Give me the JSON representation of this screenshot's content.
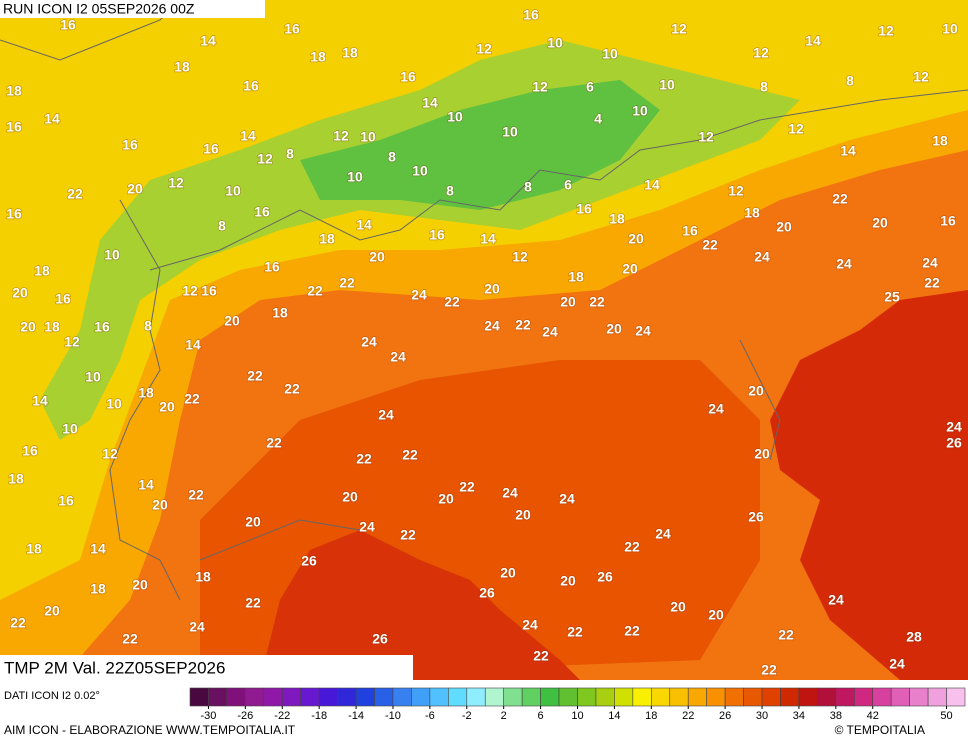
{
  "header": {
    "run": "RUN ICON I2 05SEP2026 00Z"
  },
  "map": {
    "labels": [
      16,
      14,
      16,
      18,
      18,
      16,
      18,
      18,
      16,
      14,
      16,
      16,
      14,
      12,
      8,
      12,
      10,
      8,
      10,
      10,
      8,
      16,
      14,
      12,
      16,
      10,
      10,
      12,
      12,
      14,
      12,
      10,
      12,
      6,
      10,
      8,
      8,
      12,
      4,
      10,
      10,
      10,
      12,
      12,
      18,
      14,
      12,
      14,
      6,
      8,
      16,
      18,
      16,
      22,
      18,
      20,
      22,
      20,
      16,
      24,
      22,
      25,
      24,
      24,
      20,
      20,
      18,
      12,
      14,
      16,
      20,
      14,
      18,
      16,
      8,
      16,
      18,
      22,
      22,
      24,
      22,
      20,
      20,
      22,
      20,
      24,
      24,
      22,
      24,
      24,
      24,
      22,
      22,
      20,
      22,
      18,
      10,
      10,
      12,
      18,
      20,
      20,
      18,
      16,
      16,
      10,
      8,
      12,
      16,
      20,
      14,
      16,
      22,
      20,
      12,
      10,
      14,
      10,
      16,
      18,
      16,
      12,
      14,
      20,
      18,
      14,
      20,
      18,
      20,
      22,
      22,
      24,
      18,
      22,
      20,
      22,
      22,
      24,
      22,
      22,
      20,
      24,
      22,
      20,
      22,
      24,
      20,
      24,
      20,
      20,
      26,
      26,
      26,
      26,
      24,
      22,
      22,
      22,
      20,
      20,
      22,
      24,
      22,
      24,
      28,
      26,
      24,
      22,
      24,
      20,
      24,
      26,
      20
    ]
  },
  "footer": {
    "title": "TMP 2M Val. 22Z05SEP2026",
    "source": "DATI ICON I2 0.02°",
    "credit": "AIM ICON - ELABORAZIONE WWW.TEMPOITALIA.IT",
    "copyright": "© TEMPOITALIA"
  },
  "colorbar": {
    "lim": [
      -32,
      52
    ],
    "ticks": [
      -30,
      -26,
      -22,
      -18,
      -14,
      -10,
      -6,
      -2,
      2,
      6,
      10,
      14,
      18,
      22,
      26,
      30,
      34,
      38,
      42,
      50
    ],
    "colors": [
      "#4a0840",
      "#6a1060",
      "#80107a",
      "#901a90",
      "#9018a8",
      "#8018c0",
      "#6818d0",
      "#4818d8",
      "#3028d8",
      "#2040e0",
      "#2860e8",
      "#3880f0",
      "#40a0f8",
      "#50c0ff",
      "#60dcff",
      "#90ecff",
      "#b0f4d0",
      "#80e090",
      "#60d060",
      "#40c040",
      "#60c030",
      "#80c820",
      "#a8d010",
      "#d0e000",
      "#f8f000",
      "#f8d800",
      "#f8c000",
      "#f8a800",
      "#f89000",
      "#f07000",
      "#e85800",
      "#e04000",
      "#d02800",
      "#c01410",
      "#b0103a",
      "#c01860",
      "#d02880",
      "#d840a0",
      "#e060b8",
      "#e880cc",
      "#f0a0dc",
      "#f8c0ec"
    ]
  }
}
